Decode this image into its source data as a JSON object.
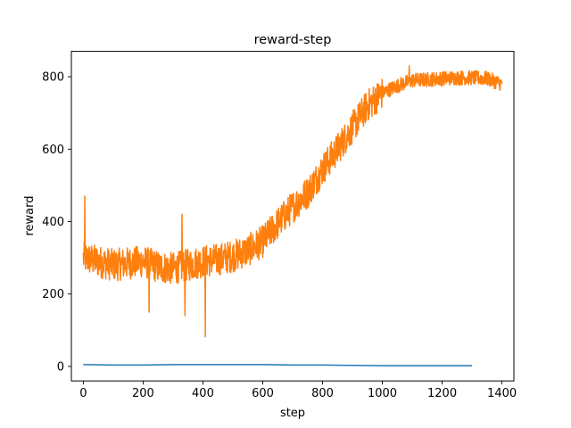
{
  "chart_data": {
    "type": "line",
    "title": "reward-step",
    "xlabel": "step",
    "ylabel": "reward",
    "xlim": [
      -40,
      1440
    ],
    "ylim": [
      -40,
      870
    ],
    "xticks": [
      0,
      200,
      400,
      600,
      800,
      1000,
      1200,
      1400
    ],
    "yticks": [
      0,
      200,
      400,
      600,
      800
    ],
    "grid": false,
    "legend": "none",
    "series": [
      {
        "color": "#1f77b4",
        "style": "smooth",
        "x": [
          0,
          100,
          200,
          300,
          400,
          500,
          600,
          700,
          800,
          900,
          1000,
          1100,
          1200,
          1300
        ],
        "values": [
          5,
          4,
          4,
          5,
          5,
          5,
          5,
          4,
          4,
          3,
          2,
          2,
          2,
          2
        ]
      },
      {
        "color": "#ff7f0e",
        "style": "noisy",
        "noise_amplitude": 45,
        "x": [
          0,
          50,
          100,
          150,
          200,
          250,
          300,
          350,
          400,
          450,
          500,
          550,
          600,
          650,
          700,
          750,
          800,
          850,
          900,
          950,
          1000,
          1050,
          1100,
          1150,
          1200,
          1250,
          1300,
          1350,
          1400
        ],
        "values": [
          300,
          290,
          280,
          285,
          290,
          275,
          270,
          280,
          290,
          295,
          305,
          320,
          345,
          395,
          440,
          480,
          545,
          600,
          660,
          720,
          755,
          775,
          790,
          792,
          795,
          797,
          797,
          795,
          780
        ],
        "peaks": [
          {
            "x": 5,
            "y": 470
          },
          {
            "x": 330,
            "y": 420
          },
          {
            "x": 1090,
            "y": 830
          }
        ],
        "troughs": [
          {
            "x": 408,
            "y": 82
          },
          {
            "x": 220,
            "y": 150
          },
          {
            "x": 340,
            "y": 140
          }
        ]
      }
    ]
  }
}
